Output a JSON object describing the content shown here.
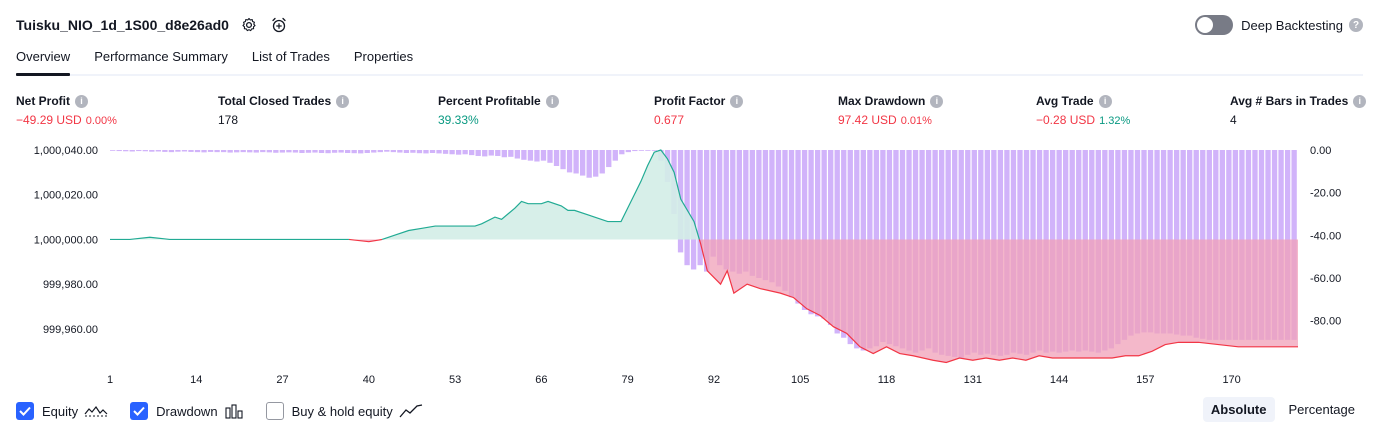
{
  "header": {
    "strategy_name": "Tuisku_NIO_1d_1S00_d8e26ad0",
    "settings_icon": "gear-icon",
    "alert_icon": "alarm-clock-plus-icon",
    "deep_backtesting_label": "Deep Backtesting",
    "deep_backtesting_enabled": false
  },
  "tabs": [
    {
      "label": "Overview",
      "active": true
    },
    {
      "label": "Performance Summary",
      "active": false
    },
    {
      "label": "List of Trades",
      "active": false
    },
    {
      "label": "Properties",
      "active": false
    }
  ],
  "metrics": [
    {
      "label": "Net Profit",
      "value": "−49.29",
      "unit": "USD",
      "pct": "0.00%",
      "tone": "neg"
    },
    {
      "label": "Total Closed Trades",
      "value": "178",
      "unit": "",
      "pct": "",
      "tone": "neutral"
    },
    {
      "label": "Percent Profitable",
      "value": "39.33%",
      "unit": "",
      "pct": "",
      "tone": "pos"
    },
    {
      "label": "Profit Factor",
      "value": "0.677",
      "unit": "",
      "pct": "",
      "tone": "neg"
    },
    {
      "label": "Max Drawdown",
      "value": "97.42",
      "unit": "USD",
      "pct": "0.01%",
      "tone": "neg"
    },
    {
      "label": "Avg Trade",
      "value": "−0.28",
      "unit": "USD",
      "pct": "1.32%",
      "tone": "neg",
      "pct_tone": "pos"
    },
    {
      "label": "Avg # Bars in Trades",
      "value": "4",
      "unit": "",
      "pct": "",
      "tone": "neutral"
    }
  ],
  "legend": {
    "equity": {
      "label": "Equity",
      "checked": true,
      "icon": "equity-line-icon"
    },
    "drawdown": {
      "label": "Drawdown",
      "checked": true,
      "icon": "bar-chart-icon"
    },
    "buy_hold": {
      "label": "Buy & hold equity",
      "checked": false,
      "icon": "trend-line-icon"
    }
  },
  "view_mode": {
    "options": [
      "Absolute",
      "Percentage"
    ],
    "selected": "Absolute"
  },
  "colors": {
    "equity_up": "#22ab94",
    "equity_down": "#f23645",
    "equity_fill_up": "#d3ede7",
    "equity_fill_down": "#f0a0b8",
    "drawdown_bar": "#d1b3fa",
    "accent": "#2962ff"
  },
  "chart_data": {
    "type": "area",
    "x_ticks": [
      1,
      14,
      27,
      40,
      53,
      66,
      79,
      92,
      105,
      118,
      131,
      144,
      157,
      170
    ],
    "left_axis": {
      "ticks": [
        "1,000,040.00",
        "1,000,020.00",
        "1,000,000.00",
        "999,980.00",
        "999,960.00"
      ],
      "range": [
        999947,
        1000040
      ],
      "baseline": 1000000
    },
    "right_axis": {
      "ticks": [
        "0.00",
        "-20.00",
        "-40.00",
        "-60.00",
        "-80.00"
      ],
      "range": [
        -97.5,
        0
      ]
    },
    "x_range": [
      1,
      180
    ],
    "series": [
      {
        "name": "Equity",
        "points": [
          [
            1,
            1000000
          ],
          [
            4,
            1000000
          ],
          [
            7,
            1000001
          ],
          [
            10,
            1000000
          ],
          [
            13,
            1000000
          ],
          [
            16,
            1000000
          ],
          [
            19,
            1000000
          ],
          [
            22,
            1000000
          ],
          [
            25,
            1000000
          ],
          [
            28,
            1000000
          ],
          [
            31,
            1000000
          ],
          [
            34,
            1000000
          ],
          [
            37,
            1000000
          ],
          [
            40,
            999999
          ],
          [
            42,
            1000000
          ],
          [
            44,
            1000002
          ],
          [
            46,
            1000004
          ],
          [
            48,
            1000005
          ],
          [
            50,
            1000006
          ],
          [
            53,
            1000006
          ],
          [
            56,
            1000006
          ],
          [
            57,
            1000007
          ],
          [
            59,
            1000010
          ],
          [
            60,
            1000009
          ],
          [
            62,
            1000014
          ],
          [
            63,
            1000017
          ],
          [
            64,
            1000016
          ],
          [
            66,
            1000016
          ],
          [
            67,
            1000017
          ],
          [
            69,
            1000015
          ],
          [
            70,
            1000013
          ],
          [
            71,
            1000013
          ],
          [
            73,
            1000011
          ],
          [
            74,
            1000010
          ],
          [
            76,
            1000008
          ],
          [
            78,
            1000008
          ],
          [
            79,
            1000014
          ],
          [
            81,
            1000026
          ],
          [
            82,
            1000033
          ],
          [
            83,
            1000039
          ],
          [
            84,
            1000040
          ],
          [
            85,
            1000036
          ],
          [
            86,
            1000030
          ],
          [
            87,
            1000018
          ],
          [
            89,
            1000008
          ],
          [
            90,
            999998
          ],
          [
            91,
            999986
          ],
          [
            93,
            999980
          ],
          [
            94,
            999986
          ],
          [
            95,
            999976
          ],
          [
            97,
            999980
          ],
          [
            99,
            999978
          ],
          [
            102,
            999976
          ],
          [
            104,
            999974
          ],
          [
            106,
            999969
          ],
          [
            108,
            999966
          ],
          [
            110,
            999961
          ],
          [
            112,
            999958
          ],
          [
            114,
            999952
          ],
          [
            116,
            999949
          ],
          [
            118,
            999952
          ],
          [
            120,
            999949
          ],
          [
            122,
            999948
          ],
          [
            125,
            999946
          ],
          [
            127,
            999945
          ],
          [
            129,
            999947
          ],
          [
            131,
            999946
          ],
          [
            133,
            999947
          ],
          [
            135,
            999946
          ],
          [
            137,
            999947
          ],
          [
            139,
            999946
          ],
          [
            141,
            999948
          ],
          [
            143,
            999947
          ],
          [
            146,
            999947
          ],
          [
            149,
            999947
          ],
          [
            152,
            999947
          ],
          [
            154,
            999948
          ],
          [
            156,
            999948
          ],
          [
            158,
            999950
          ],
          [
            160,
            999953
          ],
          [
            162,
            999954
          ],
          [
            165,
            999954
          ],
          [
            168,
            999953
          ],
          [
            171,
            999952
          ],
          [
            174,
            999952
          ],
          [
            177,
            999952
          ],
          [
            180,
            999952
          ]
        ]
      },
      {
        "name": "Drawdown",
        "values": [
          -0.3,
          -0.5,
          -0.6,
          -0.7,
          -0.5,
          -0.6,
          -0.8,
          -0.7,
          -0.9,
          -1.0,
          -0.8,
          -0.7,
          -0.9,
          -1.0,
          -1.1,
          -0.9,
          -1.0,
          -1.0,
          -1.2,
          -1.1,
          -1.0,
          -1.1,
          -1.2,
          -1.0,
          -1.1,
          -1.3,
          -1.2,
          -1.1,
          -1.2,
          -1.4,
          -1.3,
          -1.2,
          -1.4,
          -1.5,
          -1.3,
          -1.2,
          -1.4,
          -1.5,
          -1.6,
          -1.4,
          -1.2,
          -1.0,
          -0.8,
          -1.0,
          -1.2,
          -1.4,
          -1.3,
          -1.5,
          -1.6,
          -1.4,
          -1.6,
          -1.8,
          -2.0,
          -2.2,
          -2.0,
          -2.4,
          -2.8,
          -3.0,
          -2.6,
          -2.8,
          -3.4,
          -3.2,
          -4.0,
          -4.6,
          -5.0,
          -5.4,
          -5.0,
          -6.0,
          -7.5,
          -9.0,
          -10.5,
          -11.0,
          -12.0,
          -13.0,
          -12.5,
          -11.0,
          -8.0,
          -5.0,
          -2.0,
          -1.0,
          -0.5,
          -0.2,
          0.0,
          0.0,
          -5.0,
          -15.0,
          -30.0,
          -48.0,
          -54.0,
          -56.0,
          -54.0,
          -57.0,
          -50.0,
          -54.0,
          -56.0,
          -57.0,
          -58.0,
          -57.0,
          -59.0,
          -60.0,
          -61.0,
          -62.0,
          -64.0,
          -66.0,
          -69.0,
          -72.0,
          -75.0,
          -77.0,
          -78.0,
          -79.0,
          -82.0,
          -86.0,
          -88.0,
          -91.0,
          -93.0,
          -94.0,
          -93.0,
          -92.0,
          -90.0,
          -91.0,
          -92.0,
          -93.0,
          -94.0,
          -95.0,
          -94.0,
          -93.0,
          -95.0,
          -96.0,
          -96.5,
          -97.0,
          -97.4,
          -96.0,
          -95.0,
          -96.0,
          -95.5,
          -96.0,
          -96.5,
          -96.0,
          -95.0,
          -95.5,
          -96.0,
          -95.0,
          -94.0,
          -95.0,
          -94.5,
          -95.0,
          -94.5,
          -94.0,
          -94.5,
          -94.0,
          -94.5,
          -95.0,
          -94.0,
          -93.0,
          -91.0,
          -89.0,
          -87.0,
          -86.0,
          -85.5,
          -85.5,
          -86.0,
          -86.0,
          -86.0,
          -86.5,
          -87.0,
          -87.0,
          -88.0,
          -88.5,
          -89.0,
          -89.0,
          -89.0,
          -89.0,
          -89.0,
          -89.0,
          -89.0,
          -89.0,
          -89.0,
          -89.0,
          -89.0,
          -89.0,
          -89.0,
          -89.0
        ]
      }
    ]
  }
}
